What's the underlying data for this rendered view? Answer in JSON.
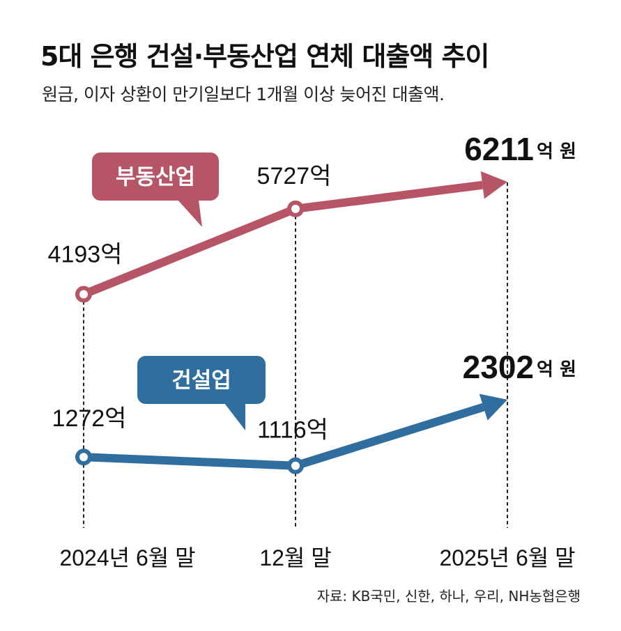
{
  "header": {
    "title": "5대 은행 건설·부동산업 연체 대출액 추이",
    "subtitle": "원금, 이자 상환이 만기일보다 1개월 이상 늦어진 대출액."
  },
  "source": "자료: KB국민, 신한, 하나, 우리, NH농협은행",
  "colors": {
    "real_estate": "#b55566",
    "construction": "#2f6e9e"
  },
  "chart_data": {
    "type": "line",
    "title": "5대 은행 건설·부동산업 연체 대출액 추이",
    "categories": [
      "2024년 6월 말",
      "12월 말",
      "2025년 6월 말"
    ],
    "unit": "억 원",
    "series": [
      {
        "name": "부동산업",
        "values": [
          4193,
          5727,
          6211
        ],
        "labels": [
          "4193억",
          "5727억",
          "6211"
        ],
        "color": "#b55566"
      },
      {
        "name": "건설업",
        "values": [
          1272,
          1116,
          2302
        ],
        "labels": [
          "1272억",
          "1116억",
          "2302"
        ],
        "color": "#2f6e9e"
      }
    ],
    "last_unit": "억 원",
    "grid": false
  }
}
